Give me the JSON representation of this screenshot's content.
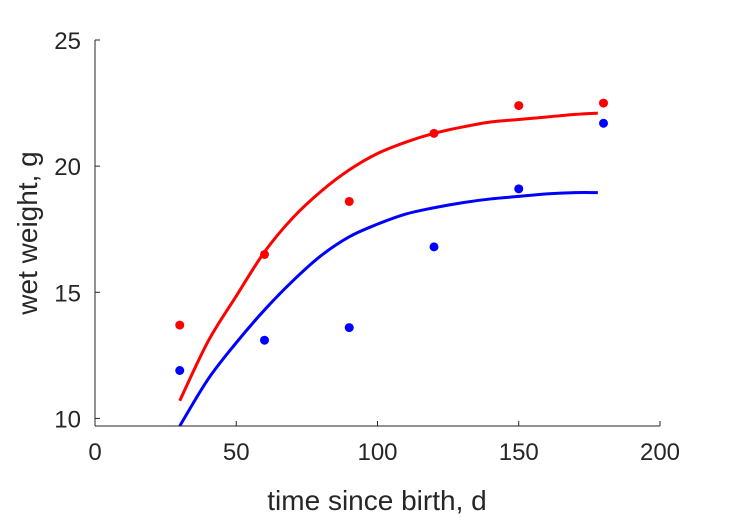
{
  "chart_data": {
    "type": "scatter",
    "title": "",
    "xlabel": "time since birth, d",
    "ylabel": "wet weight, g",
    "xlim": [
      0,
      200
    ],
    "ylim": [
      9.7,
      25
    ],
    "xticks": [
      0,
      50,
      100,
      150,
      200
    ],
    "yticks": [
      10,
      15,
      20,
      25
    ],
    "xtick_labels": [
      "0",
      "50",
      "100",
      "150",
      "200"
    ],
    "ytick_labels": [
      "10",
      "15",
      "20",
      "25"
    ],
    "grid": false,
    "legend": "none",
    "series": [
      {
        "color": "#ff0000",
        "points": {
          "x": [
            30,
            60,
            90,
            120,
            150,
            180
          ],
          "y": [
            13.7,
            16.5,
            18.6,
            21.3,
            22.4,
            22.5
          ]
        },
        "fit_curve": {
          "x": [
            30,
            40,
            50,
            60,
            70,
            80,
            90,
            100,
            110,
            120,
            130,
            140,
            150,
            160,
            170,
            178
          ],
          "y": [
            10.7,
            13.05,
            14.85,
            16.6,
            17.95,
            19.0,
            19.85,
            20.5,
            20.95,
            21.3,
            21.55,
            21.75,
            21.85,
            21.95,
            22.05,
            22.1
          ]
        }
      },
      {
        "color": "#0000ff",
        "points": {
          "x": [
            30,
            60,
            90,
            120,
            150,
            180
          ],
          "y": [
            11.9,
            13.1,
            13.6,
            16.8,
            19.1,
            21.7
          ]
        },
        "fit_curve": {
          "x": [
            30,
            40,
            50,
            60,
            70,
            80,
            90,
            100,
            110,
            120,
            130,
            140,
            150,
            160,
            170,
            178
          ],
          "y": [
            9.7,
            11.55,
            13.0,
            14.3,
            15.45,
            16.45,
            17.2,
            17.7,
            18.1,
            18.35,
            18.55,
            18.7,
            18.8,
            18.9,
            18.95,
            18.95
          ]
        }
      }
    ]
  }
}
